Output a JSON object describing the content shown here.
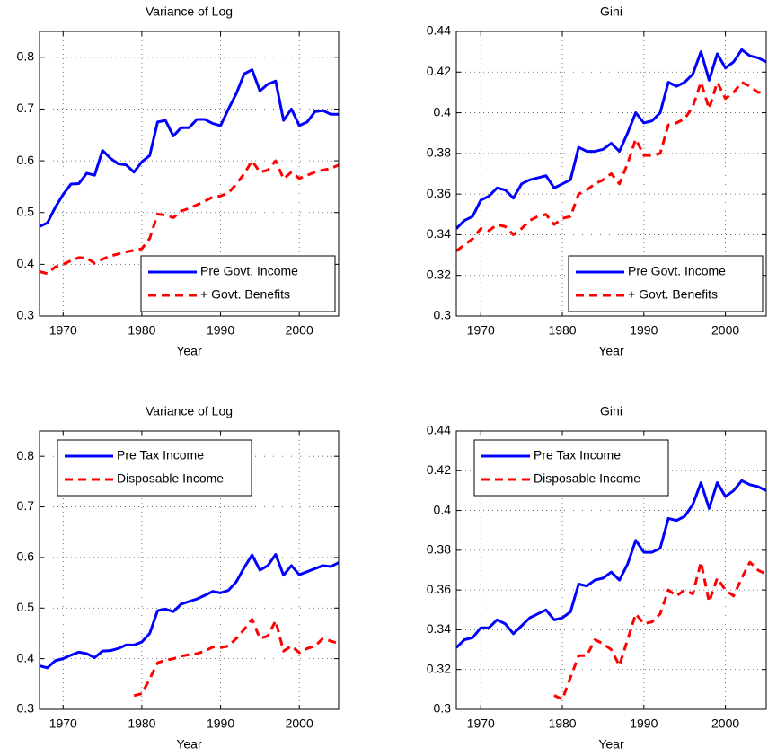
{
  "chart_data": [
    {
      "type": "line",
      "title": "Variance of Log",
      "x_label": "Year",
      "x": [
        1967,
        1968,
        1969,
        1970,
        1971,
        1972,
        1973,
        1974,
        1975,
        1976,
        1977,
        1978,
        1979,
        1980,
        1981,
        1982,
        1983,
        1984,
        1985,
        1986,
        1987,
        1988,
        1989,
        1990,
        1991,
        1992,
        1993,
        1994,
        1995,
        1996,
        1997,
        1998,
        1999,
        2000,
        2001,
        2002,
        2003,
        2004,
        2005
      ],
      "xlim": [
        1967,
        2005
      ],
      "xticks": [
        1970,
        1980,
        1990,
        2000
      ],
      "ylim": [
        0.3,
        0.85
      ],
      "yticks": [
        0.3,
        0.4,
        0.5,
        0.6,
        0.7,
        0.8
      ],
      "grid": true,
      "legend": "lower right",
      "series": [
        {
          "name": "Pre Govt. Income",
          "color": "#0000ff",
          "style": "solid",
          "values": [
            0.473,
            0.48,
            0.51,
            0.535,
            0.555,
            0.556,
            0.576,
            0.572,
            0.62,
            0.605,
            0.594,
            0.592,
            0.578,
            0.598,
            0.61,
            0.675,
            0.678,
            0.648,
            0.664,
            0.664,
            0.68,
            0.68,
            0.672,
            0.668,
            0.7,
            0.73,
            0.768,
            0.776,
            0.735,
            0.748,
            0.754,
            0.678,
            0.7,
            0.668,
            0.675,
            0.695,
            0.697,
            0.69,
            0.69
          ]
        },
        {
          "name": "+ Govt. Benefits",
          "color": "#ff0000",
          "style": "dashed",
          "values": [
            0.386,
            0.382,
            0.395,
            0.4,
            0.407,
            0.413,
            0.412,
            0.402,
            0.41,
            0.416,
            0.42,
            0.424,
            0.427,
            0.43,
            0.45,
            0.497,
            0.495,
            0.49,
            0.503,
            0.508,
            0.515,
            0.522,
            0.53,
            0.532,
            0.538,
            0.555,
            0.575,
            0.6,
            0.578,
            0.582,
            0.6,
            0.565,
            0.578,
            0.566,
            0.572,
            0.578,
            0.582,
            0.585,
            0.592
          ]
        }
      ]
    },
    {
      "type": "line",
      "title": "Gini",
      "x_label": "Year",
      "x": [
        1967,
        1968,
        1969,
        1970,
        1971,
        1972,
        1973,
        1974,
        1975,
        1976,
        1977,
        1978,
        1979,
        1980,
        1981,
        1982,
        1983,
        1984,
        1985,
        1986,
        1987,
        1988,
        1989,
        1990,
        1991,
        1992,
        1993,
        1994,
        1995,
        1996,
        1997,
        1998,
        1999,
        2000,
        2001,
        2002,
        2003,
        2004,
        2005
      ],
      "xlim": [
        1967,
        2005
      ],
      "xticks": [
        1970,
        1980,
        1990,
        2000
      ],
      "ylim": [
        0.3,
        0.44
      ],
      "yticks": [
        0.3,
        0.32,
        0.34,
        0.36,
        0.38,
        0.4,
        0.42,
        0.44
      ],
      "grid": true,
      "legend": "lower right",
      "series": [
        {
          "name": "Pre Govt. Income",
          "color": "#0000ff",
          "style": "solid",
          "values": [
            0.343,
            0.347,
            0.349,
            0.357,
            0.359,
            0.363,
            0.362,
            0.358,
            0.365,
            0.367,
            0.368,
            0.369,
            0.363,
            0.365,
            0.367,
            0.383,
            0.381,
            0.381,
            0.382,
            0.385,
            0.381,
            0.39,
            0.4,
            0.395,
            0.396,
            0.4,
            0.415,
            0.413,
            0.415,
            0.419,
            0.43,
            0.416,
            0.429,
            0.422,
            0.425,
            0.431,
            0.428,
            0.427,
            0.425
          ]
        },
        {
          "name": "+ Govt. Benefits",
          "color": "#ff0000",
          "style": "dashed",
          "values": [
            0.332,
            0.335,
            0.338,
            0.343,
            0.342,
            0.345,
            0.344,
            0.34,
            0.343,
            0.347,
            0.349,
            0.35,
            0.345,
            0.348,
            0.349,
            0.36,
            0.362,
            0.365,
            0.367,
            0.37,
            0.365,
            0.375,
            0.387,
            0.379,
            0.379,
            0.38,
            0.394,
            0.395,
            0.397,
            0.403,
            0.415,
            0.402,
            0.415,
            0.407,
            0.41,
            0.415,
            0.413,
            0.41,
            0.41
          ]
        }
      ]
    },
    {
      "type": "line",
      "title": "Variance of Log",
      "x_label": "Year",
      "x": [
        1967,
        1968,
        1969,
        1970,
        1971,
        1972,
        1973,
        1974,
        1975,
        1976,
        1977,
        1978,
        1979,
        1980,
        1981,
        1982,
        1983,
        1984,
        1985,
        1986,
        1987,
        1988,
        1989,
        1990,
        1991,
        1992,
        1993,
        1994,
        1995,
        1996,
        1997,
        1998,
        1999,
        2000,
        2001,
        2002,
        2003,
        2004,
        2005
      ],
      "xlim": [
        1967,
        2005
      ],
      "xticks": [
        1970,
        1980,
        1990,
        2000
      ],
      "ylim": [
        0.3,
        0.85
      ],
      "yticks": [
        0.3,
        0.4,
        0.5,
        0.6,
        0.7,
        0.8
      ],
      "grid": true,
      "legend": "upper left",
      "series": [
        {
          "name": "Pre Tax Income",
          "color": "#0000ff",
          "style": "solid",
          "values": [
            0.386,
            0.382,
            0.396,
            0.4,
            0.407,
            0.413,
            0.41,
            0.402,
            0.415,
            0.416,
            0.42,
            0.427,
            0.427,
            0.433,
            0.45,
            0.495,
            0.498,
            0.493,
            0.508,
            0.513,
            0.518,
            0.525,
            0.533,
            0.53,
            0.535,
            0.552,
            0.58,
            0.605,
            0.575,
            0.584,
            0.606,
            0.565,
            0.584,
            0.566,
            0.572,
            0.578,
            0.584,
            0.582,
            0.59
          ]
        },
        {
          "name": "Disposable Income",
          "color": "#ff0000",
          "style": "dashed",
          "values": [
            null,
            null,
            null,
            null,
            null,
            null,
            null,
            null,
            null,
            null,
            null,
            null,
            0.327,
            0.331,
            0.36,
            0.392,
            0.397,
            0.4,
            0.405,
            0.408,
            0.41,
            0.415,
            0.423,
            0.422,
            0.425,
            0.44,
            0.458,
            0.478,
            0.44,
            0.445,
            0.475,
            0.415,
            0.425,
            0.412,
            0.42,
            0.425,
            0.44,
            0.435,
            0.43
          ]
        }
      ]
    },
    {
      "type": "line",
      "title": "Gini",
      "x_label": "Year",
      "x": [
        1967,
        1968,
        1969,
        1970,
        1971,
        1972,
        1973,
        1974,
        1975,
        1976,
        1977,
        1978,
        1979,
        1980,
        1981,
        1982,
        1983,
        1984,
        1985,
        1986,
        1987,
        1988,
        1989,
        1990,
        1991,
        1992,
        1993,
        1994,
        1995,
        1996,
        1997,
        1998,
        1999,
        2000,
        2001,
        2002,
        2003,
        2004,
        2005
      ],
      "xlim": [
        1967,
        2005
      ],
      "xticks": [
        1970,
        1980,
        1990,
        2000
      ],
      "ylim": [
        0.3,
        0.44
      ],
      "yticks": [
        0.3,
        0.32,
        0.34,
        0.36,
        0.38,
        0.4,
        0.42,
        0.44
      ],
      "grid": true,
      "legend": "upper left",
      "series": [
        {
          "name": "Pre Tax Income",
          "color": "#0000ff",
          "style": "solid",
          "values": [
            0.331,
            0.335,
            0.336,
            0.341,
            0.341,
            0.345,
            0.343,
            0.338,
            0.342,
            0.346,
            0.348,
            0.35,
            0.345,
            0.346,
            0.349,
            0.363,
            0.362,
            0.365,
            0.366,
            0.369,
            0.365,
            0.373,
            0.385,
            0.379,
            0.379,
            0.381,
            0.396,
            0.395,
            0.397,
            0.403,
            0.414,
            0.401,
            0.414,
            0.407,
            0.41,
            0.415,
            0.413,
            0.412,
            0.41
          ]
        },
        {
          "name": "Disposable Income",
          "color": "#ff0000",
          "style": "dashed",
          "values": [
            null,
            null,
            null,
            null,
            null,
            null,
            null,
            null,
            null,
            null,
            null,
            null,
            0.307,
            0.305,
            0.316,
            0.327,
            0.327,
            0.335,
            0.333,
            0.33,
            0.322,
            0.335,
            0.348,
            0.343,
            0.344,
            0.348,
            0.36,
            0.357,
            0.36,
            0.358,
            0.374,
            0.354,
            0.366,
            0.36,
            0.357,
            0.366,
            0.374,
            0.37,
            0.368
          ]
        }
      ]
    }
  ]
}
